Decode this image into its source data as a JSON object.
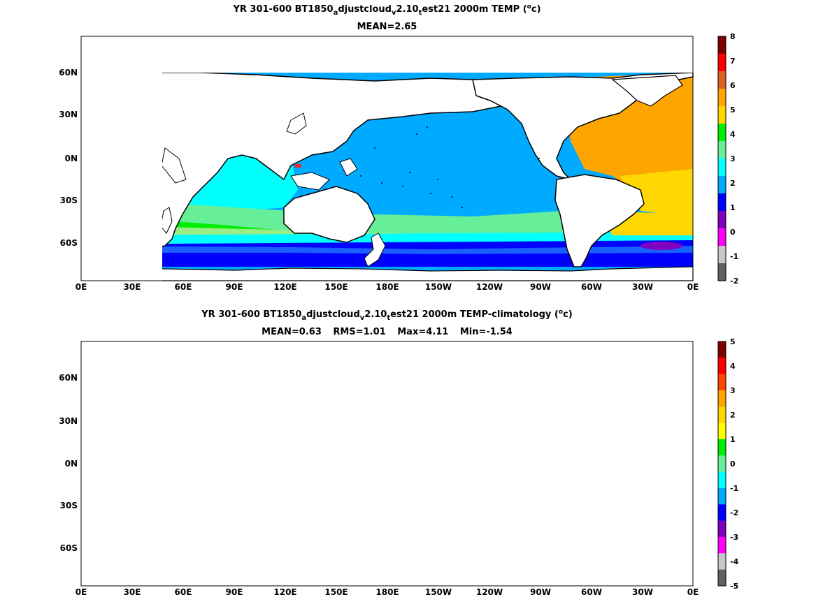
{
  "maps": [
    {
      "title_pre": "YR 301-600 BT1850",
      "title_sub1": "a",
      "title_mid1": "djustcloud",
      "title_sub2": "v",
      "title_mid2": "2.10",
      "title_sub3": "t",
      "title_post": "est21 2000m TEMP (",
      "title_sup": "o",
      "title_unit": "c)",
      "stats": [
        "MEAN=2.65"
      ],
      "lat_labels": [
        "60N",
        "30N",
        "0N",
        "30S",
        "60S"
      ],
      "lon_labels": [
        "0E",
        "30E",
        "60E",
        "90E",
        "120E",
        "150E",
        "180E",
        "150W",
        "120W",
        "90W",
        "60W",
        "30W",
        "0E"
      ],
      "colorbar_labels": [
        "8",
        "7",
        "6",
        "5",
        "4",
        "3",
        "2",
        "1",
        "0",
        "-1",
        "-2"
      ],
      "colorbar_colors": [
        "#800000",
        "#ff0000",
        "#e06020",
        "#ffa500",
        "#ffd700",
        "#00ee00",
        "#66ee99",
        "#00ffff",
        "#00aaff",
        "#0000ff",
        "#8000c0",
        "#ff00ff",
        "#c8c8c8",
        "#606060"
      ]
    },
    {
      "title_pre": "YR 301-600 BT1850",
      "title_sub1": "a",
      "title_mid1": "djustcloud",
      "title_sub2": "v",
      "title_mid2": "2.10",
      "title_sub3": "t",
      "title_post": "est21 2000m TEMP-climatology (",
      "title_sup": "o",
      "title_unit": "c)",
      "stats": [
        "MEAN=0.63",
        "RMS=1.01",
        "Max=4.11",
        "Min=-1.54"
      ],
      "lat_labels": [
        "60N",
        "30N",
        "0N",
        "30S",
        "60S"
      ],
      "lon_labels": [
        "0E",
        "30E",
        "60E",
        "90E",
        "120E",
        "150E",
        "180E",
        "150W",
        "120W",
        "90W",
        "60W",
        "30W",
        "0E"
      ],
      "colorbar_labels": [
        "5",
        "4",
        "3",
        "2",
        "1",
        "0",
        "-1",
        "-2",
        "-3",
        "-4",
        "-5"
      ],
      "colorbar_colors": [
        "#800000",
        "#ff0000",
        "#ff4500",
        "#ffa500",
        "#ffd700",
        "#ffff00",
        "#00ee00",
        "#66ee99",
        "#00ffff",
        "#00aaff",
        "#0000ff",
        "#8000c0",
        "#ff00ff",
        "#c8c8c8",
        "#606060"
      ]
    }
  ]
}
